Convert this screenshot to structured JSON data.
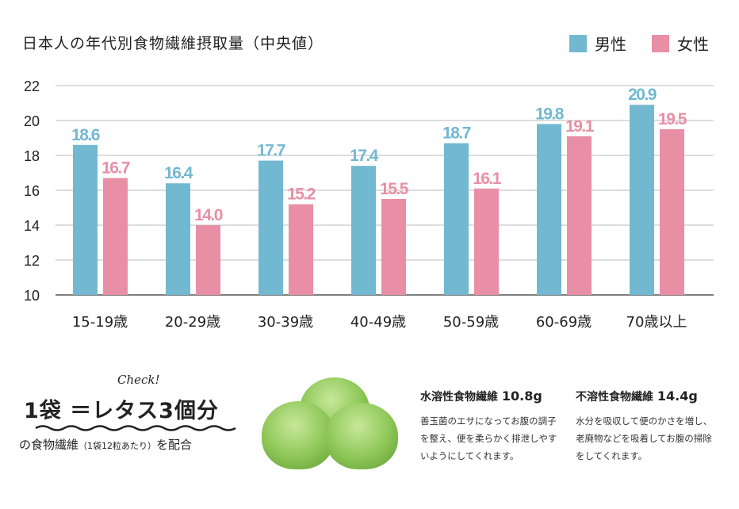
{
  "chart_data": {
    "type": "bar",
    "title": "日本人の年代別食物繊維摂取量（中央値）",
    "categories": [
      "15-19歳",
      "20-29歳",
      "30-39歳",
      "40-49歳",
      "50-59歳",
      "60-69歳",
      "70歳以上"
    ],
    "series": [
      {
        "name": "男性",
        "color": "#72b8d1",
        "values": [
          18.6,
          16.4,
          17.7,
          17.4,
          18.7,
          19.8,
          20.9
        ]
      },
      {
        "name": "女性",
        "color": "#e98fa5",
        "values": [
          16.7,
          14.0,
          15.2,
          15.5,
          16.1,
          19.1,
          19.5
        ]
      }
    ],
    "ylim": [
      10,
      22
    ],
    "yticks": [
      10,
      12,
      14,
      16,
      18,
      20,
      22
    ],
    "grid": true,
    "legend": "top-right",
    "xlabel": "",
    "ylabel": ""
  },
  "info": {
    "check": "Check!",
    "headline": "1袋 ＝レタス3個分",
    "sub_main": "の食物繊維",
    "sub_note": "（1袋12粒あたり）",
    "sub_end": "を配合",
    "soluble": {
      "label": "水溶性食物繊維",
      "value": "10.8g",
      "desc": "善玉菌のエサになってお腹の調子を整え、便を柔らかく排泄しやすいようにしてくれます。"
    },
    "insoluble": {
      "label": "不溶性食物繊維",
      "value": "14.4g",
      "desc": "水分を吸収して便のかさを増し、老廃物などを吸着してお腹の掃除をしてくれます。"
    }
  }
}
